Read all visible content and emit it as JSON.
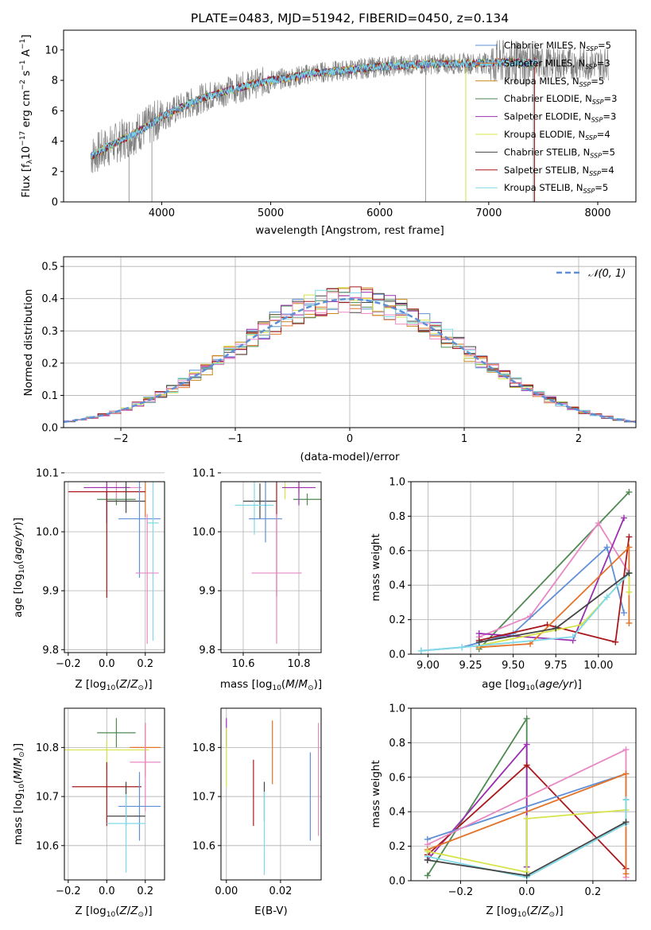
{
  "figure": {
    "title": "PLATE=0483, MJD=51942, FIBERID=0450, z=0.134"
  },
  "colors": {
    "chabrier_miles": "#5f8fd6",
    "salpeter_miles": "#e3742a",
    "kroupa_miles": "#c8861b",
    "chabrier_elodie": "#4f8a52",
    "salpeter_elodie": "#9b2fb0",
    "kroupa_elodie": "#d6e448",
    "chabrier_stelib": "#444444",
    "salpeter_stelib": "#a8181c",
    "kroupa_stelib": "#7fd9e6",
    "pink": "#e888c4",
    "data": "#808080",
    "gaussian": "#5f8fd6"
  },
  "chart_data": [
    {
      "id": "spectrum",
      "type": "line",
      "xlabel": "wavelength [Angstrom, rest frame]",
      "ylabel": "Flux [f_λ10^-17 erg cm^-2 s^-1 A^-1]",
      "xlim": [
        3100,
        8350
      ],
      "ylim": [
        0,
        11.3
      ],
      "xticks": [
        "4000",
        "5000",
        "6000",
        "7000",
        "8000"
      ],
      "yticks": [
        "0",
        "2",
        "4",
        "6",
        "8",
        "10"
      ],
      "model_continuum": {
        "x": [
          3350,
          3500,
          3700,
          3900,
          4000,
          4200,
          4400,
          4600,
          4800,
          5000,
          5200,
          5400,
          5600,
          5800,
          6000,
          6200,
          6400,
          6600,
          6800,
          7000,
          7200,
          7400
        ],
        "y": [
          3.0,
          3.6,
          4.3,
          5.1,
          5.6,
          6.3,
          6.9,
          7.3,
          7.7,
          8.0,
          8.2,
          8.5,
          8.6,
          8.75,
          8.9,
          9.0,
          9.05,
          9.1,
          9.1,
          9.15,
          9.2,
          9.1
        ]
      },
      "legend": [
        {
          "label": "Chabrier MILES, N",
          "sub": "SSP",
          "tail": "=5",
          "color_key": "chabrier_miles"
        },
        {
          "label": "Salpeter MILES, N",
          "sub": "SSP",
          "tail": "=3",
          "color_key": "salpeter_miles"
        },
        {
          "label": "Kroupa MILES, N",
          "sub": "SSP",
          "tail": "=5",
          "color_key": "kroupa_miles"
        },
        {
          "label": "Chabrier ELODIE, N",
          "sub": "SSP",
          "tail": "=3",
          "color_key": "chabrier_elodie"
        },
        {
          "label": "Salpeter ELODIE, N",
          "sub": "SSP",
          "tail": "=3",
          "color_key": "salpeter_elodie"
        },
        {
          "label": "Kroupa ELODIE, N",
          "sub": "SSP",
          "tail": "=4",
          "color_key": "kroupa_elodie"
        },
        {
          "label": "Chabrier STELIB, N",
          "sub": "SSP",
          "tail": "=5",
          "color_key": "chabrier_stelib"
        },
        {
          "label": "Salpeter STELIB, N",
          "sub": "SSP",
          "tail": "=4",
          "color_key": "salpeter_stelib"
        },
        {
          "label": "Kroupa STELIB, N",
          "sub": "SSP",
          "tail": "=5",
          "color_key": "kroupa_stelib"
        }
      ]
    },
    {
      "id": "residuals",
      "type": "line",
      "xlabel": "(data-model)/error",
      "ylabel": "Normed distribution",
      "xlim": [
        -2.5,
        2.5
      ],
      "ylim": [
        0,
        0.53
      ],
      "xticks": [
        "−2",
        "−1",
        "0",
        "1",
        "2"
      ],
      "yticks": [
        "0.0",
        "0.1",
        "0.2",
        "0.3",
        "0.4",
        "0.5"
      ],
      "legend": "𝒩(0, 1)",
      "bin_width": 0.1
    },
    {
      "id": "age_vs_Z",
      "type": "scatter",
      "xlabel": "Z [log10(Z/Z⊙)]",
      "ylabel": "age  [log10(age/yr)]",
      "xlim": [
        -0.22,
        0.3
      ],
      "ylim": [
        9.795,
        10.085
      ],
      "xticks": [
        "−0.2",
        "0.0",
        "0.2"
      ],
      "yticks": [
        "9.8",
        "9.9",
        "10.0",
        "10.1"
      ],
      "points": [
        {
          "color_key": "chabrier_elodie",
          "x": 0.05,
          "y": 10.055,
          "xerr": 0.1,
          "yerr": [
            0.01,
            0.01
          ]
        },
        {
          "color_key": "salpeter_miles",
          "x": 0.2,
          "y": 10.115,
          "xerr": 0.08,
          "yerr": [
            0.09,
            0.03
          ]
        },
        {
          "color_key": "kroupa_elodie",
          "x": 0.0,
          "y": 10.095,
          "xerr": 0.22,
          "yerr": [
            0.04,
            0.02
          ]
        },
        {
          "color_key": "pink",
          "x": 0.05,
          "y": 10.075,
          "xerr": 0.13,
          "yerr": [
            0.02,
            0.02
          ]
        },
        {
          "color_key": "salpeter_elodie",
          "x": 0.0,
          "y": 10.075,
          "xerr": 0.12,
          "yerr": [
            0.06,
            0.06
          ]
        },
        {
          "color_key": "salpeter_stelib",
          "x": 0.0,
          "y": 10.068,
          "xerr": 0.2,
          "yerr": [
            0.18,
            0.0
          ]
        },
        {
          "color_key": "chabrier_stelib",
          "x": 0.1,
          "y": 10.052,
          "xerr": 0.1,
          "yerr": [
            0.02,
            0.05
          ]
        },
        {
          "color_key": "chabrier_miles",
          "x": 0.17,
          "y": 10.022,
          "xerr": 0.11,
          "yerr": [
            0.1,
            0.08
          ]
        },
        {
          "color_key": "kroupa_stelib",
          "x": 0.24,
          "y": 10.015,
          "xerr": 0.03,
          "yerr": [
            0.2,
            0.07
          ]
        },
        {
          "color_key": "pink",
          "x": 0.21,
          "y": 9.93,
          "xerr": 0.06,
          "yerr": [
            0.12,
            0.1
          ]
        }
      ]
    },
    {
      "id": "age_vs_mass",
      "type": "scatter",
      "xlabel": "mass [log10(M/M⊙)]",
      "ylabel": "",
      "xlim": [
        10.52,
        10.88
      ],
      "ylim": [
        9.795,
        10.085
      ],
      "xticks": [
        "10.6",
        "10.8"
      ],
      "yticks": [
        "9.8",
        "9.9",
        "10.0",
        "10.1"
      ],
      "points": [
        {
          "color_key": "chabrier_elodie",
          "x": 10.83,
          "y": 10.055,
          "xerr": 0.05,
          "yerr": [
            0.01,
            0.01
          ]
        },
        {
          "color_key": "salpeter_miles",
          "x": 10.8,
          "y": 10.115,
          "xerr": 0.08,
          "yerr": [
            0.05,
            0.03
          ]
        },
        {
          "color_key": "kroupa_elodie",
          "x": 10.75,
          "y": 10.095,
          "xerr": 0.05,
          "yerr": [
            0.04,
            0.02
          ]
        },
        {
          "color_key": "salpeter_elodie",
          "x": 10.8,
          "y": 10.075,
          "xerr": 0.06,
          "yerr": [
            0.03,
            0.02
          ]
        },
        {
          "color_key": "chabrier_stelib",
          "x": 10.66,
          "y": 10.052,
          "xerr": 0.06,
          "yerr": [
            0.03,
            0.03
          ]
        },
        {
          "color_key": "kroupa_stelib",
          "x": 10.64,
          "y": 10.045,
          "xerr": 0.07,
          "yerr": [
            0.05,
            0.05
          ]
        },
        {
          "color_key": "chabrier_miles",
          "x": 10.68,
          "y": 10.022,
          "xerr": 0.06,
          "yerr": [
            0.04,
            0.07
          ]
        },
        {
          "color_key": "salpeter_stelib",
          "x": 10.72,
          "y": 10.05,
          "xerr": 0.0,
          "yerr": [
            0.16,
            0.06
          ]
        },
        {
          "color_key": "pink",
          "x": 10.72,
          "y": 9.93,
          "xerr": 0.09,
          "yerr": [
            0.12,
            0.1
          ]
        }
      ]
    },
    {
      "id": "weight_vs_age",
      "type": "line",
      "xlabel": "age  [log10(age/yr)]",
      "ylabel": "mass weight",
      "xlim": [
        8.9,
        10.22
      ],
      "ylim": [
        0,
        1
      ],
      "xticks": [
        "9.00",
        "9.25",
        "9.50",
        "9.75",
        "10.00"
      ],
      "yticks": [
        "0.0",
        "0.2",
        "0.4",
        "0.6",
        "0.8",
        "1.0"
      ],
      "series": [
        {
          "color_key": "chabrier_elodie",
          "x": [
            9.3,
            10.18
          ],
          "y": [
            0.03,
            0.94
          ]
        },
        {
          "color_key": "pink",
          "x": [
            9.3,
            9.6,
            10.0,
            10.18
          ],
          "y": [
            0.1,
            0.22,
            0.76,
            0.47
          ]
        },
        {
          "color_key": "chabrier_miles",
          "x": [
            8.96,
            9.2,
            9.5,
            10.05,
            10.15
          ],
          "y": [
            0.02,
            0.04,
            0.12,
            0.62,
            0.24
          ]
        },
        {
          "color_key": "salpeter_elodie",
          "x": [
            9.3,
            9.85,
            10.15
          ],
          "y": [
            0.12,
            0.08,
            0.79
          ]
        },
        {
          "color_key": "salpeter_stelib",
          "x": [
            9.3,
            9.7,
            10.1,
            10.18
          ],
          "y": [
            0.08,
            0.17,
            0.07,
            0.68
          ]
        },
        {
          "color_key": "salpeter_miles",
          "x": [
            9.3,
            9.6,
            10.18,
            10.18
          ],
          "y": [
            0.04,
            0.06,
            0.62,
            0.18
          ]
        },
        {
          "color_key": "kroupa_elodie",
          "x": [
            9.3,
            9.9,
            10.18,
            10.18
          ],
          "y": [
            0.05,
            0.17,
            0.47,
            0.36
          ]
        },
        {
          "color_key": "kroupa_stelib",
          "x": [
            8.96,
            9.2,
            9.85,
            10.05,
            10.18
          ],
          "y": [
            0.02,
            0.04,
            0.1,
            0.33,
            0.47
          ]
        },
        {
          "color_key": "chabrier_stelib",
          "x": [
            9.3,
            9.75,
            10.18
          ],
          "y": [
            0.07,
            0.15,
            0.47
          ]
        }
      ]
    },
    {
      "id": "mass_vs_Z",
      "type": "scatter",
      "xlabel": "Z [log10(Z/Z⊙)]",
      "ylabel": "mass [log10(M/M⊙)]",
      "xlim": [
        -0.22,
        0.3
      ],
      "ylim": [
        10.53,
        10.88
      ],
      "xticks": [
        "−0.2",
        "0.0",
        "0.2"
      ],
      "yticks": [
        "10.6",
        "10.7",
        "10.8"
      ],
      "points": [
        {
          "color_key": "chabrier_elodie",
          "x": 0.05,
          "y": 10.83,
          "xerr": 0.1,
          "yerr": [
            0.03,
            0.03
          ]
        },
        {
          "color_key": "salpeter_miles",
          "x": 0.2,
          "y": 10.8,
          "xerr": 0.08,
          "yerr": [
            0.06,
            0.05
          ]
        },
        {
          "color_key": "kroupa_elodie",
          "x": 0.0,
          "y": 10.795,
          "xerr": 0.22,
          "yerr": [
            0.04,
            0.02
          ]
        },
        {
          "color_key": "pink",
          "x": 0.2,
          "y": 10.77,
          "xerr": 0.08,
          "yerr": [
            0.1,
            0.08
          ]
        },
        {
          "color_key": "salpeter_stelib",
          "x": 0.0,
          "y": 10.72,
          "xerr": 0.18,
          "yerr": [
            0.08,
            0.05
          ]
        },
        {
          "color_key": "chabrier_miles",
          "x": 0.17,
          "y": 10.68,
          "xerr": 0.11,
          "yerr": [
            0.07,
            0.07
          ]
        },
        {
          "color_key": "chabrier_stelib",
          "x": 0.1,
          "y": 10.66,
          "xerr": 0.1,
          "yerr": [
            0.02,
            0.07
          ]
        },
        {
          "color_key": "kroupa_stelib",
          "x": 0.1,
          "y": 10.645,
          "xerr": 0.1,
          "yerr": [
            0.1,
            0.06
          ]
        }
      ]
    },
    {
      "id": "mass_vs_EBV",
      "type": "scatter",
      "xlabel": "E(B-V)",
      "ylabel": "",
      "xlim": [
        -0.002,
        0.035
      ],
      "ylim": [
        10.53,
        10.88
      ],
      "xticks": [
        "0.00",
        "0.02"
      ],
      "yticks": [
        "10.6",
        "10.7",
        "10.8"
      ],
      "points": [
        {
          "color_key": "salpeter_elodie",
          "x": 0.0,
          "y": 10.83,
          "xerr": 0.0,
          "yerr": [
            0.03,
            0.03
          ]
        },
        {
          "color_key": "kroupa_elodie",
          "x": 0.0,
          "y": 10.78,
          "xerr": 0.0,
          "yerr": [
            0.06,
            0.06
          ]
        },
        {
          "color_key": "salpeter_stelib",
          "x": 0.01,
          "y": 10.71,
          "xerr": 0.0,
          "yerr": [
            0.07,
            0.065
          ]
        },
        {
          "color_key": "salpeter_miles",
          "x": 0.017,
          "y": 10.79,
          "xerr": 0.0,
          "yerr": [
            0.065,
            0.065
          ]
        },
        {
          "color_key": "chabrier_stelib",
          "x": 0.014,
          "y": 10.69,
          "xerr": 0.0,
          "yerr": [
            0.04,
            0.04
          ]
        },
        {
          "color_key": "kroupa_stelib",
          "x": 0.014,
          "y": 10.63,
          "xerr": 0.0,
          "yerr": [
            0.09,
            0.08
          ]
        },
        {
          "color_key": "chabrier_miles",
          "x": 0.031,
          "y": 10.7,
          "xerr": 0.0,
          "yerr": [
            0.09,
            0.09
          ]
        },
        {
          "color_key": "pink",
          "x": 0.034,
          "y": 10.735,
          "xerr": 0.0,
          "yerr": [
            0.115,
            0.115
          ]
        }
      ]
    },
    {
      "id": "weight_vs_Z",
      "type": "line",
      "xlabel": "Z [log10(Z/Z⊙)]",
      "ylabel": "mass weight",
      "xlim": [
        -0.35,
        0.33
      ],
      "ylim": [
        0,
        1
      ],
      "xticks": [
        "−0.2",
        "0.0",
        "0.2"
      ],
      "yticks": [
        "0.0",
        "0.2",
        "0.4",
        "0.6",
        "0.8",
        "1.0"
      ],
      "series": [
        {
          "color_key": "chabrier_elodie",
          "x": [
            -0.3,
            0.0,
            0.0
          ],
          "y": [
            0.03,
            0.94,
            0.03
          ]
        },
        {
          "color_key": "salpeter_elodie",
          "x": [
            -0.3,
            0.0,
            0.0
          ],
          "y": [
            0.12,
            0.79,
            0.08
          ]
        },
        {
          "color_key": "salpeter_stelib",
          "x": [
            -0.3,
            0.0,
            0.3
          ],
          "y": [
            0.15,
            0.67,
            0.07
          ]
        },
        {
          "color_key": "chabrier_miles",
          "x": [
            -0.3,
            0.3,
            0.3
          ],
          "y": [
            0.24,
            0.62,
            0.47
          ]
        },
        {
          "color_key": "pink",
          "x": [
            -0.3,
            0.3,
            0.3
          ],
          "y": [
            0.21,
            0.76,
            0.02
          ]
        },
        {
          "color_key": "salpeter_miles",
          "x": [
            -0.3,
            0.3,
            0.3
          ],
          "y": [
            0.18,
            0.62,
            0.04
          ]
        },
        {
          "color_key": "kroupa_elodie",
          "x": [
            -0.3,
            0.0,
            0.0,
            0.3
          ],
          "y": [
            0.17,
            0.05,
            0.36,
            0.41
          ]
        },
        {
          "color_key": "kroupa_stelib",
          "x": [
            -0.3,
            0.0,
            0.3,
            0.3
          ],
          "y": [
            0.14,
            0.02,
            0.33,
            0.47
          ]
        },
        {
          "color_key": "chabrier_stelib",
          "x": [
            -0.3,
            0.0,
            0.3
          ],
          "y": [
            0.12,
            0.03,
            0.34
          ]
        }
      ]
    }
  ]
}
